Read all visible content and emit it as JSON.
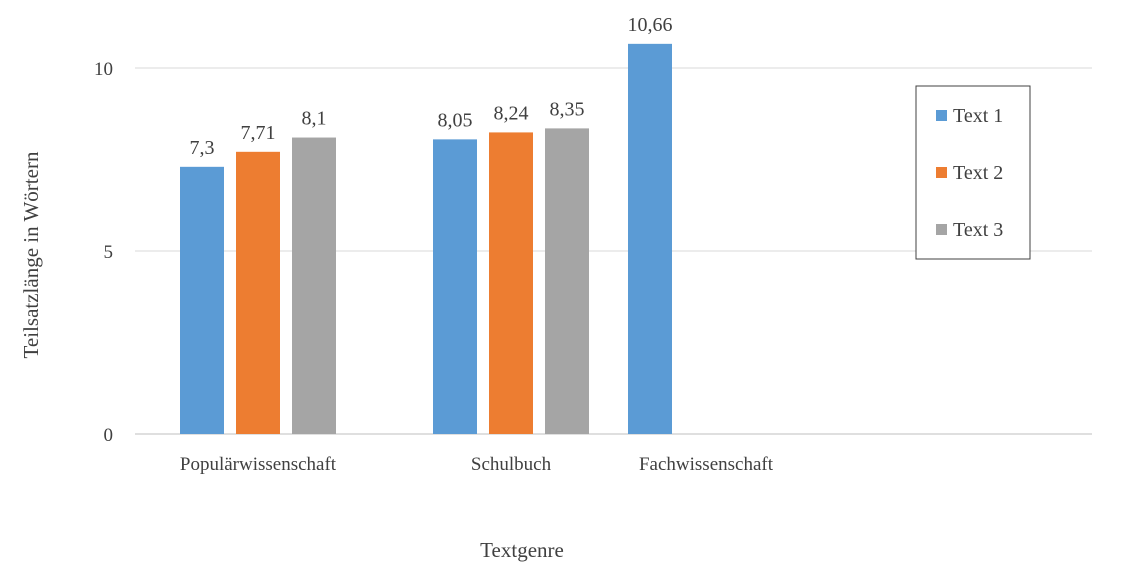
{
  "chart_data": {
    "type": "bar",
    "categories": [
      "Populärwissenschaft",
      "Schulbuch",
      "Fachwissenschaft"
    ],
    "series": [
      {
        "name": "Text 1",
        "color": "#5B9BD5",
        "values": [
          7.3,
          8.05,
          10.66
        ],
        "labels": [
          "7,3",
          "8,05",
          "10,66"
        ]
      },
      {
        "name": "Text 2",
        "color": "#ED7D31",
        "values": [
          7.71,
          8.24,
          null
        ],
        "labels": [
          "7,71",
          "8,24",
          ""
        ]
      },
      {
        "name": "Text 3",
        "color": "#A5A5A5",
        "values": [
          8.1,
          8.35,
          null
        ],
        "labels": [
          "8,1",
          "8,35",
          ""
        ]
      }
    ],
    "yticks": [
      0,
      5,
      10
    ],
    "ytick_labels": [
      "0",
      "5",
      "10"
    ],
    "ylim": [
      0,
      11
    ],
    "xlabel": "Textgenre",
    "ylabel": "Teilsatzlänge in Wörtern",
    "grid": true,
    "legend_position": "right"
  }
}
